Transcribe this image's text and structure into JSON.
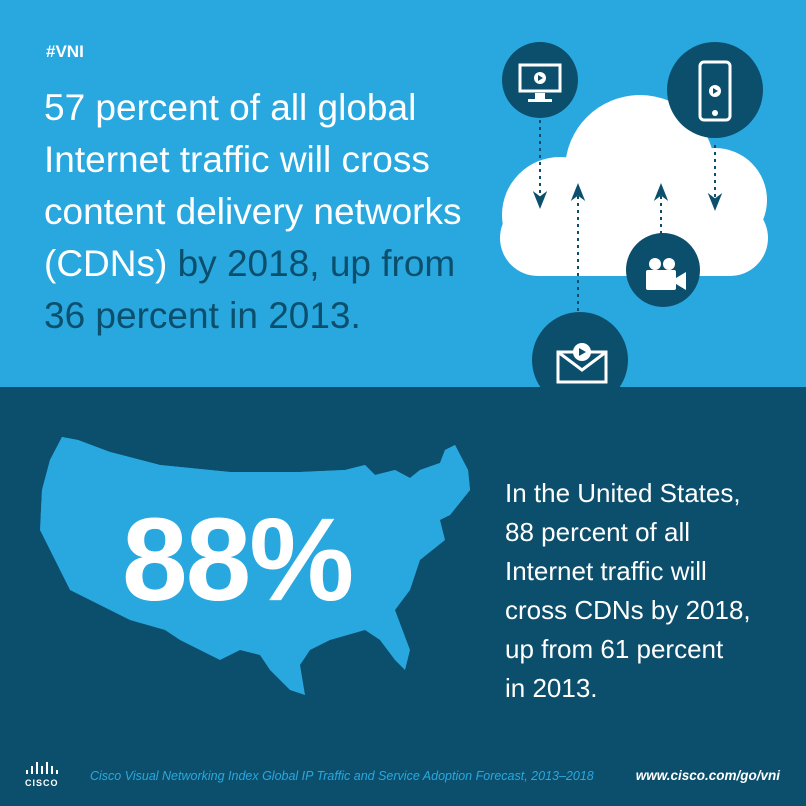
{
  "hashtag": "#VNI",
  "headline": {
    "highlight": [
      "57 percent of all global",
      "Internet traffic will cross",
      "content delivery networks",
      "(CDNs)"
    ],
    "rest": [
      "by 2018, up from",
      "36 percent in 2013."
    ]
  },
  "us": {
    "stat": "88%",
    "lines": [
      "In the United States,",
      "88 percent of all",
      "Internet traffic will",
      "cross CDNs by 2018,",
      "up from 61 percent",
      "in 2013."
    ]
  },
  "footer": {
    "logo": "CISCO",
    "source": "Cisco Visual Networking Index Global IP Traffic and Service Adoption Forecast, 2013–2018",
    "url": "www.cisco.com/go/vni"
  }
}
